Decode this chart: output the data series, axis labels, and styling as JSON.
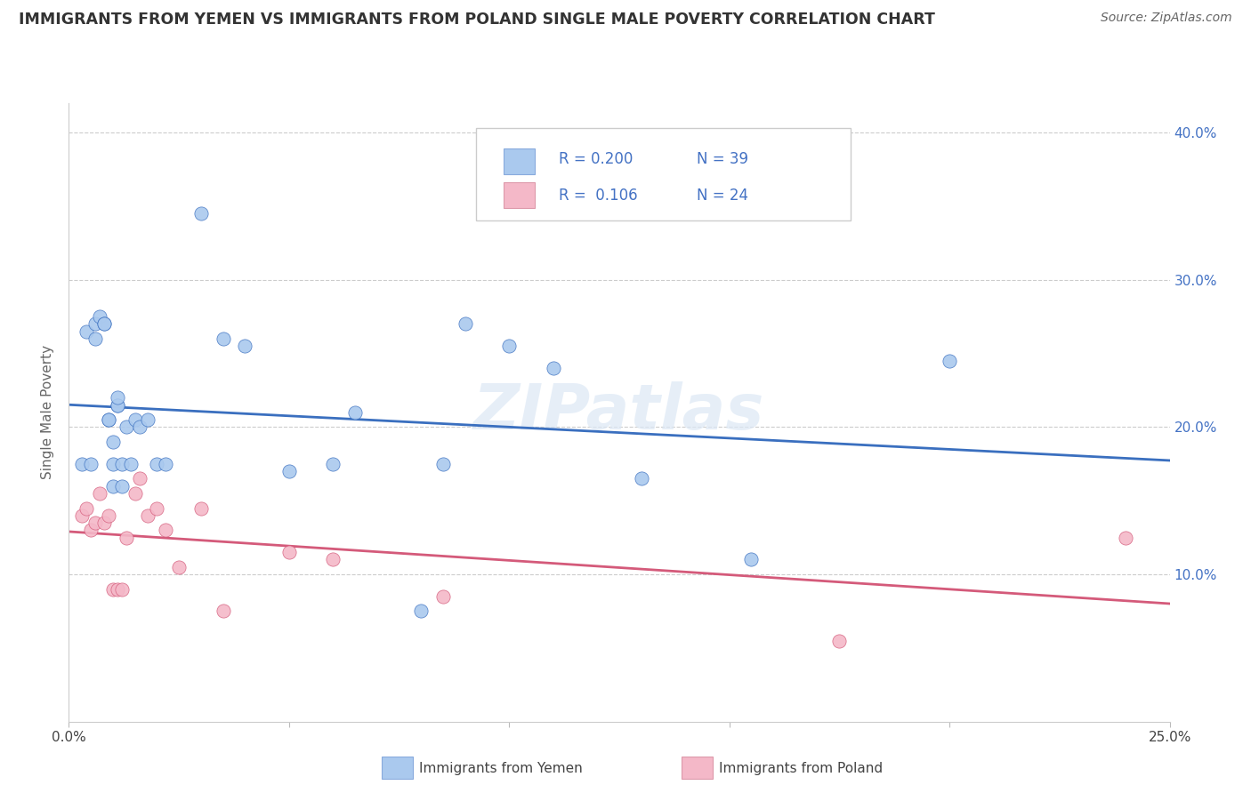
{
  "title": "IMMIGRANTS FROM YEMEN VS IMMIGRANTS FROM POLAND SINGLE MALE POVERTY CORRELATION CHART",
  "source": "Source: ZipAtlas.com",
  "ylabel": "Single Male Poverty",
  "xlim": [
    0.0,
    0.25
  ],
  "ylim": [
    0.0,
    0.42
  ],
  "legend_r1": "R = 0.200",
  "legend_n1": "N = 39",
  "legend_r2": "R =  0.106",
  "legend_n2": "N = 24",
  "yemen_color": "#aac9ee",
  "poland_color": "#f4b8c8",
  "yemen_line_color": "#3a6fbf",
  "poland_line_color": "#d45a7a",
  "watermark": "ZIPatlas",
  "yemen_x": [
    0.003,
    0.004,
    0.005,
    0.006,
    0.006,
    0.007,
    0.008,
    0.008,
    0.009,
    0.009,
    0.01,
    0.01,
    0.01,
    0.011,
    0.011,
    0.011,
    0.012,
    0.012,
    0.013,
    0.014,
    0.015,
    0.016,
    0.018,
    0.02,
    0.022,
    0.03,
    0.035,
    0.04,
    0.05,
    0.06,
    0.065,
    0.08,
    0.085,
    0.09,
    0.1,
    0.11,
    0.13,
    0.155,
    0.2
  ],
  "yemen_y": [
    0.175,
    0.265,
    0.175,
    0.26,
    0.27,
    0.275,
    0.27,
    0.27,
    0.205,
    0.205,
    0.175,
    0.19,
    0.16,
    0.215,
    0.215,
    0.22,
    0.175,
    0.16,
    0.2,
    0.175,
    0.205,
    0.2,
    0.205,
    0.175,
    0.175,
    0.345,
    0.26,
    0.255,
    0.17,
    0.175,
    0.21,
    0.075,
    0.175,
    0.27,
    0.255,
    0.24,
    0.165,
    0.11,
    0.245
  ],
  "poland_x": [
    0.003,
    0.004,
    0.005,
    0.006,
    0.007,
    0.008,
    0.009,
    0.01,
    0.011,
    0.012,
    0.013,
    0.015,
    0.016,
    0.018,
    0.02,
    0.022,
    0.025,
    0.03,
    0.035,
    0.05,
    0.06,
    0.085,
    0.175,
    0.24
  ],
  "poland_y": [
    0.14,
    0.145,
    0.13,
    0.135,
    0.155,
    0.135,
    0.14,
    0.09,
    0.09,
    0.09,
    0.125,
    0.155,
    0.165,
    0.14,
    0.145,
    0.13,
    0.105,
    0.145,
    0.075,
    0.115,
    0.11,
    0.085,
    0.055,
    0.125
  ]
}
